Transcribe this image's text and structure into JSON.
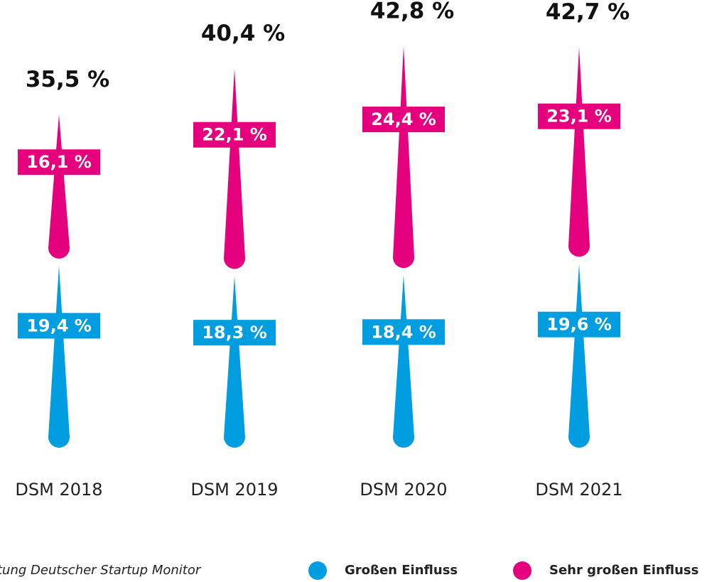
{
  "chart_data": {
    "type": "needle",
    "categories": [
      "DSM 2018",
      "DSM 2019",
      "DSM 2020",
      "DSM 2021"
    ],
    "series": [
      {
        "name": "Großen Einfluss",
        "color": "#009de0",
        "values": [
          19.4,
          18.3,
          18.4,
          19.6
        ],
        "value_labels": [
          "19,4 %",
          "18,3 %",
          "18,4 %",
          "19,6 %"
        ]
      },
      {
        "name": "Sehr großen Einfluss",
        "color": "#e5007d",
        "values": [
          16.1,
          22.1,
          24.4,
          23.1
        ],
        "value_labels": [
          "16,1 %",
          "22,1 %",
          "24,4 %",
          "23,1 %"
        ]
      }
    ],
    "totals": [
      35.5,
      40.4,
      42.8,
      42.7
    ],
    "total_labels": [
      "35,5 %",
      "40,4 %",
      "42,8 %",
      "42,7 %"
    ],
    "source": "tung Deutscher Startup Monitor"
  }
}
